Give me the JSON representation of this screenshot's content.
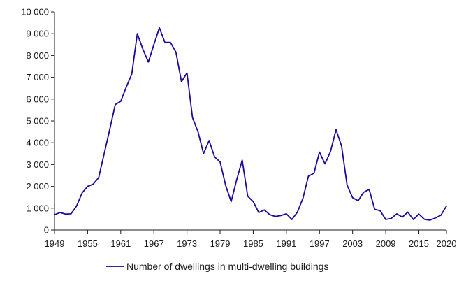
{
  "chart_data": {
    "type": "line",
    "title": "",
    "xlabel": "",
    "ylabel": "",
    "x_tick_labels": [
      "1949",
      "1955",
      "1961",
      "1967",
      "1973",
      "1979",
      "1985",
      "1991",
      "1997",
      "2003",
      "2009",
      "2015",
      "2020"
    ],
    "y_tick_labels": [
      "0",
      "1 000",
      "2 000",
      "3 000",
      "4 000",
      "5 000",
      "6 000",
      "7 000",
      "8 000",
      "9 000",
      "10 000"
    ],
    "ylim": [
      0,
      10000
    ],
    "xlim": [
      1949,
      2020
    ],
    "grid": false,
    "legend_position": "bottom",
    "series": [
      {
        "name": "Number of dwellings in multi-dwelling buildings",
        "color": "#1a0a9c",
        "x": [
          1949,
          1950,
          1951,
          1952,
          1953,
          1954,
          1955,
          1956,
          1957,
          1958,
          1959,
          1960,
          1961,
          1962,
          1963,
          1964,
          1965,
          1966,
          1967,
          1968,
          1969,
          1970,
          1971,
          1972,
          1973,
          1974,
          1975,
          1976,
          1977,
          1978,
          1979,
          1980,
          1981,
          1982,
          1983,
          1984,
          1985,
          1986,
          1987,
          1988,
          1989,
          1990,
          1991,
          1992,
          1993,
          1994,
          1995,
          1996,
          1997,
          1998,
          1999,
          2000,
          2001,
          2002,
          2003,
          2004,
          2005,
          2006,
          2007,
          2008,
          2009,
          2010,
          2011,
          2012,
          2013,
          2014,
          2015,
          2016,
          2017,
          2018,
          2019,
          2020
        ],
        "values": [
          700,
          800,
          730,
          740,
          1100,
          1700,
          2000,
          2100,
          2400,
          3500,
          4600,
          5750,
          5900,
          6550,
          7150,
          9000,
          8300,
          7700,
          8500,
          9270,
          8600,
          8600,
          8150,
          6800,
          7200,
          5150,
          4500,
          3500,
          4100,
          3350,
          3120,
          2050,
          1300,
          2300,
          3200,
          1550,
          1300,
          800,
          920,
          700,
          620,
          660,
          740,
          480,
          820,
          1450,
          2470,
          2600,
          3570,
          3030,
          3600,
          4600,
          3850,
          2060,
          1480,
          1340,
          1730,
          1860,
          950,
          880,
          480,
          530,
          740,
          590,
          820,
          480,
          730,
          490,
          450,
          550,
          680,
          1100
        ]
      }
    ]
  }
}
